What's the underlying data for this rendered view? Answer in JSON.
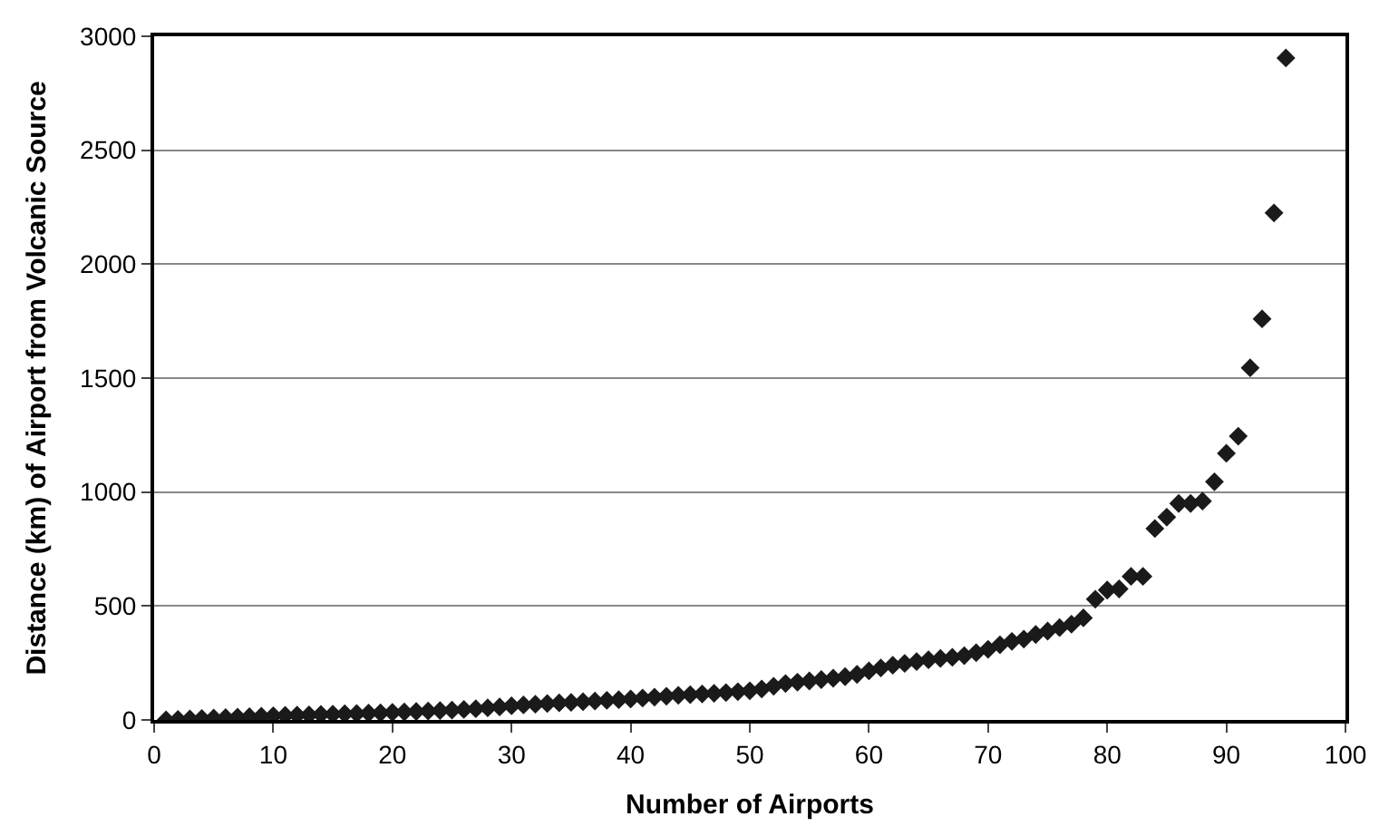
{
  "chart_data": {
    "type": "scatter",
    "xlabel": "Number of Airports",
    "ylabel": "Distance (km) of Airport from Volcanic Source",
    "x": [
      1,
      2,
      3,
      4,
      5,
      6,
      7,
      8,
      9,
      10,
      11,
      12,
      13,
      14,
      15,
      16,
      17,
      18,
      19,
      20,
      21,
      22,
      23,
      24,
      25,
      26,
      27,
      28,
      29,
      30,
      31,
      32,
      33,
      34,
      35,
      36,
      37,
      38,
      39,
      40,
      41,
      42,
      43,
      44,
      45,
      46,
      47,
      48,
      49,
      50,
      51,
      52,
      53,
      54,
      55,
      56,
      57,
      58,
      59,
      60,
      61,
      62,
      63,
      64,
      65,
      66,
      67,
      68,
      69,
      70,
      71,
      72,
      73,
      74,
      75,
      76,
      77,
      78,
      79,
      80,
      81,
      82,
      83,
      84,
      85,
      86,
      87,
      88,
      89,
      90,
      91,
      92,
      93,
      94,
      95
    ],
    "series": [
      {
        "color": "#1a1a1a",
        "values": [
          0,
          2,
          4,
          6,
          8,
          10,
          12,
          14,
          16,
          18,
          20,
          21,
          22,
          24,
          25,
          27,
          28,
          30,
          31,
          33,
          35,
          37,
          39,
          41,
          43,
          46,
          49,
          53,
          57,
          62,
          66,
          69,
          72,
          75,
          77,
          80,
          83,
          86,
          89,
          92,
          96,
          100,
          104,
          108,
          111,
          114,
          117,
          120,
          124,
          128,
          136,
          148,
          160,
          166,
          171,
          177,
          183,
          190,
          200,
          215,
          228,
          240,
          248,
          256,
          264,
          270,
          275,
          282,
          295,
          310,
          330,
          345,
          355,
          375,
          390,
          405,
          420,
          448,
          530,
          570,
          575,
          630,
          630,
          840,
          890,
          950,
          950,
          960,
          1045,
          1170,
          1245,
          1545,
          1760,
          2225,
          2905
        ]
      }
    ],
    "xlim": [
      0,
      100
    ],
    "xticks": [
      0,
      10,
      20,
      30,
      40,
      50,
      60,
      70,
      80,
      90,
      100
    ],
    "ylim": [
      0,
      3000
    ],
    "yticks": [
      0,
      500,
      1000,
      1500,
      2000,
      2500,
      3000
    ],
    "grid": "y",
    "marker": "diamond",
    "legend": false
  }
}
